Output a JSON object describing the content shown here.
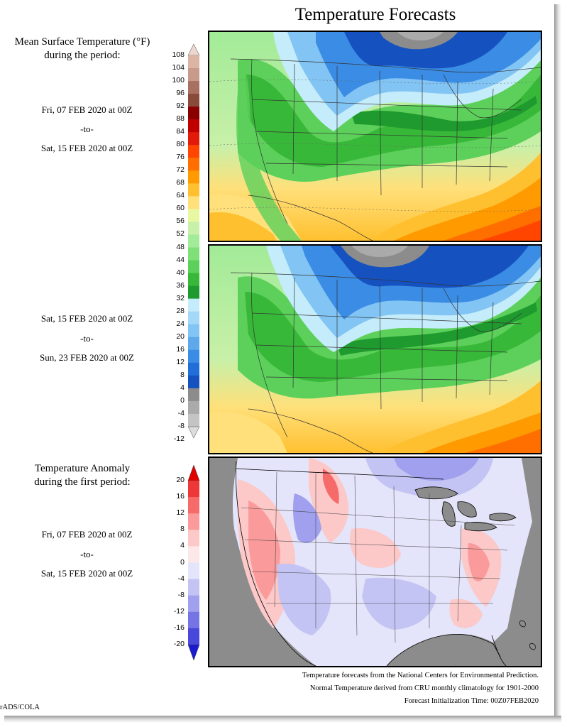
{
  "title": "Temperature Forecasts",
  "mean_heading": [
    "Mean Surface Temperature (°F)",
    "during the period:"
  ],
  "period1": {
    "from": "Fri, 07 FEB 2020 at 00Z",
    "sep": "-to-",
    "to": "Sat, 15 FEB 2020 at 00Z"
  },
  "period2": {
    "from": "Sat, 15 FEB 2020 at 00Z",
    "sep": "-to-",
    "to": "Sun, 23 FEB 2020 at 00Z"
  },
  "anomaly_heading": [
    "Temperature Anomaly",
    "during the first period:"
  ],
  "period3": {
    "from": "Fri, 07 FEB 2020 at 00Z",
    "sep": "-to-",
    "to": "Sat, 15 FEB 2020 at 00Z"
  },
  "temp_scale": {
    "labels": [
      "108",
      "104",
      "100",
      "96",
      "92",
      "88",
      "84",
      "80",
      "76",
      "72",
      "68",
      "64",
      "60",
      "56",
      "52",
      "48",
      "44",
      "40",
      "36",
      "32",
      "28",
      "24",
      "20",
      "16",
      "12",
      "8",
      "4",
      "0",
      "-4",
      "-8",
      "-12"
    ],
    "colors": [
      "#ecd8cf",
      "#dcb4a4",
      "#c79a8a",
      "#a87060",
      "#8a4a3a",
      "#8a0000",
      "#c00000",
      "#e21a0a",
      "#ff4500",
      "#ff6f00",
      "#ff9a00",
      "#ffc030",
      "#ffe07a",
      "#e8f8a0",
      "#c8f0a8",
      "#a2eb98",
      "#80e078",
      "#5cd05a",
      "#38b838",
      "#1f9a2e",
      "#c4ecfa",
      "#a4d8f8",
      "#82c4f4",
      "#5ea8ec",
      "#3a8ce4",
      "#226ed8",
      "#1552c0",
      "#8c8c8c",
      "#aaaaaa",
      "#c4c4c4",
      "#dcdcdc"
    ]
  },
  "anom_scale": {
    "labels": [
      "20",
      "16",
      "12",
      "8",
      "4",
      "0",
      "-4",
      "-8",
      "-12",
      "-16",
      "-20"
    ],
    "colors": [
      "#e00000",
      "#ee3838",
      "#f66a6a",
      "#fa9a9a",
      "#fcc8c8",
      "#fce8e8",
      "#e4e4fa",
      "#c4c4f4",
      "#a0a0ee",
      "#7474e4",
      "#4848da",
      "#1a1ad0"
    ]
  },
  "footer": [
    "Temperature forecasts from the National Centers for Environmental Prediction.",
    "Normal Temperature derived from CRU monthly climatology for 1901-2000",
    "Forecast Initialization Time: 00Z07FEB2020"
  ],
  "credit": "rADS/COLA"
}
